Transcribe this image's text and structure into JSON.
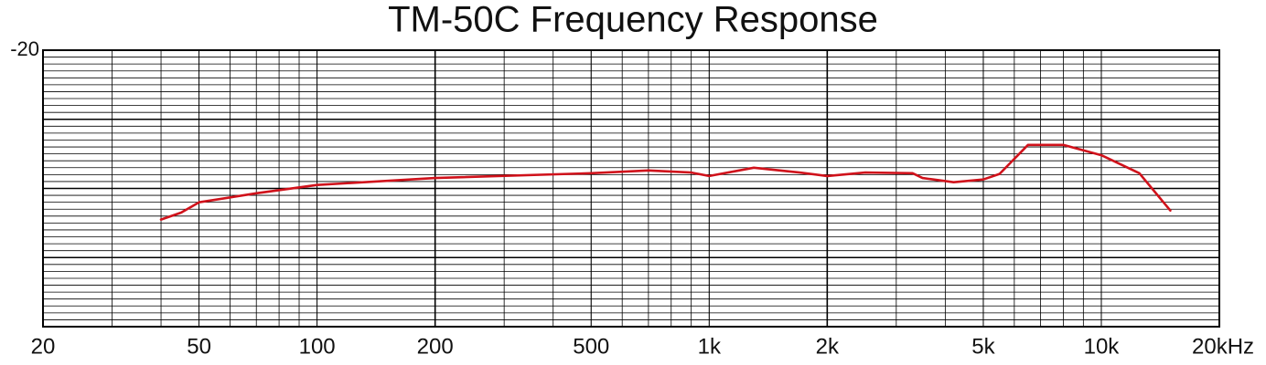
{
  "chart_data": {
    "type": "line",
    "title": "TM-50C Frequency Response",
    "x": [
      40,
      45,
      50,
      70,
      100,
      200,
      500,
      700,
      900,
      1000,
      1300,
      1700,
      2000,
      2500,
      3300,
      3500,
      4200,
      5000,
      5500,
      6500,
      8000,
      10000,
      12500,
      15000
    ],
    "series": [
      {
        "name": "TM-50C",
        "color": "#d0121b",
        "values": [
          -44.5,
          -43.5,
          -42,
          -40.7,
          -39.5,
          -38.5,
          -37.8,
          -37.4,
          -37.7,
          -38.2,
          -37,
          -37.7,
          -38.2,
          -37.7,
          -37.8,
          -38.5,
          -39.1,
          -38.7,
          -37.9,
          -33.7,
          -33.7,
          -35.2,
          -37.8,
          -43.2
        ]
      }
    ],
    "xlim": [
      20,
      20000
    ],
    "xticks": [
      20,
      50,
      100,
      200,
      500,
      {
        "value": 1000,
        "label": "1k"
      },
      {
        "value": 2000,
        "label": "2k"
      },
      {
        "value": 5000,
        "label": "5k"
      },
      {
        "value": 10000,
        "label": "10k"
      },
      {
        "value": 20000,
        "label": "20kHz"
      }
    ],
    "xscale": "log",
    "ylim": [
      -60,
      -20
    ],
    "yticks": [
      -20
    ],
    "grid": true
  }
}
